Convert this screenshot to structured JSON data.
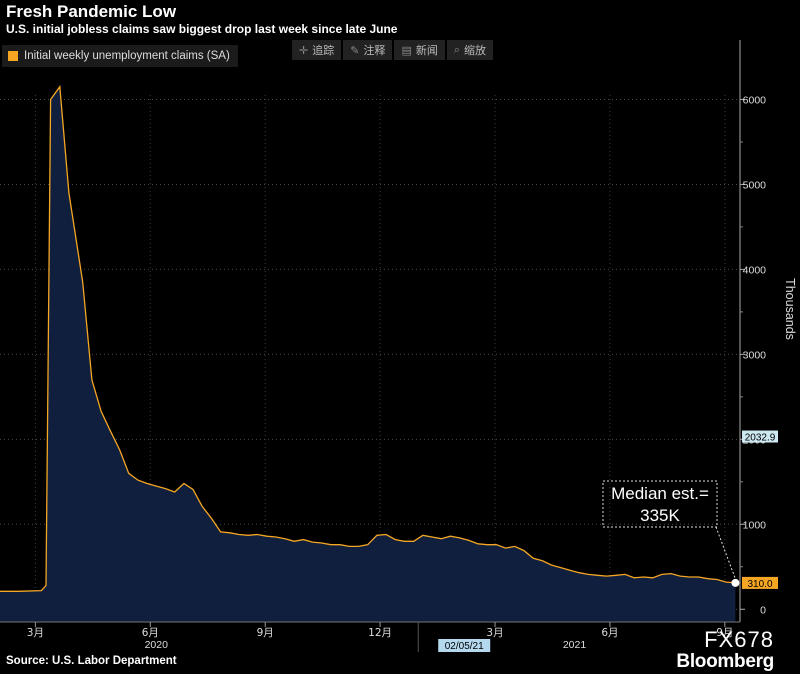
{
  "header": {
    "title": "Fresh Pandemic Low",
    "subtitle": "U.S. initial jobless claims saw biggest drop last week since late June"
  },
  "legend": {
    "label": "Initial weekly unemployment claims (SA)",
    "color": "#f5a623"
  },
  "toolbar": [
    {
      "icon": "crosshair-icon",
      "glyph": "✛",
      "label": "追踪"
    },
    {
      "icon": "pencil-icon",
      "glyph": "✎",
      "label": "注释"
    },
    {
      "icon": "news-icon",
      "glyph": "▤",
      "label": "新闻"
    },
    {
      "icon": "zoom-icon",
      "glyph": "⌕",
      "label": "缩放"
    }
  ],
  "footer": {
    "source": "Source: U.S. Labor Department",
    "ticker": "FX678",
    "brand": "Bloomberg"
  },
  "chart_data": {
    "type": "area",
    "title": "Fresh Pandemic Low",
    "ylabel": "Thousands",
    "ylim": [
      -150,
      6700
    ],
    "yticks": [
      0,
      1000,
      2000,
      3000,
      4000,
      5000,
      6000
    ],
    "xlim": [
      2020.09,
      2021.7
    ],
    "xticks": [
      {
        "x": 2020.167,
        "label": "3月"
      },
      {
        "x": 2020.417,
        "label": "6月"
      },
      {
        "x": 2020.667,
        "label": "9月"
      },
      {
        "x": 2020.917,
        "label": "12月"
      },
      {
        "x": 2021.167,
        "label": "3月"
      },
      {
        "x": 2021.417,
        "label": "6月"
      },
      {
        "x": 2021.667,
        "label": "9月"
      }
    ],
    "year_labels": [
      {
        "x": 2020.43,
        "label": "2020"
      },
      {
        "x": 2021.34,
        "label": "2021"
      }
    ],
    "date_marker": {
      "x": 2021.1,
      "label": "02/05/21"
    },
    "value_tags": [
      {
        "value": 2032.9,
        "label": "2032.9",
        "bg": "#cde9f2",
        "fg": "#000"
      },
      {
        "value": 310,
        "label": "310.0",
        "bg": "#f5a623",
        "fg": "#000"
      }
    ],
    "annotation": {
      "lines": [
        "Median est.=",
        "335K"
      ],
      "target_value": 310
    },
    "series": [
      {
        "name": "Initial weekly unemployment claims (SA)",
        "color": "#f5a623",
        "fill": "#0f1f3d",
        "points": [
          [
            2020.09,
            211
          ],
          [
            2020.13,
            211
          ],
          [
            2020.18,
            220
          ],
          [
            2020.19,
            280
          ],
          [
            2020.2,
            6000
          ],
          [
            2020.22,
            6150
          ],
          [
            2020.24,
            4900
          ],
          [
            2020.27,
            3850
          ],
          [
            2020.29,
            2700
          ],
          [
            2020.31,
            2330
          ],
          [
            2020.33,
            2100
          ],
          [
            2020.35,
            1880
          ],
          [
            2020.37,
            1600
          ],
          [
            2020.39,
            1520
          ],
          [
            2020.41,
            1480
          ],
          [
            2020.43,
            1450
          ],
          [
            2020.45,
            1420
          ],
          [
            2020.47,
            1380
          ],
          [
            2020.49,
            1480
          ],
          [
            2020.51,
            1410
          ],
          [
            2020.53,
            1210
          ],
          [
            2020.55,
            1070
          ],
          [
            2020.57,
            910
          ],
          [
            2020.59,
            900
          ],
          [
            2020.61,
            880
          ],
          [
            2020.63,
            870
          ],
          [
            2020.65,
            880
          ],
          [
            2020.67,
            860
          ],
          [
            2020.69,
            850
          ],
          [
            2020.71,
            830
          ],
          [
            2020.73,
            800
          ],
          [
            2020.75,
            820
          ],
          [
            2020.77,
            790
          ],
          [
            2020.79,
            780
          ],
          [
            2020.81,
            760
          ],
          [
            2020.83,
            760
          ],
          [
            2020.85,
            740
          ],
          [
            2020.87,
            740
          ],
          [
            2020.89,
            760
          ],
          [
            2020.91,
            870
          ],
          [
            2020.93,
            880
          ],
          [
            2020.95,
            820
          ],
          [
            2020.97,
            800
          ],
          [
            2020.99,
            800
          ],
          [
            2021.01,
            870
          ],
          [
            2021.03,
            850
          ],
          [
            2021.05,
            830
          ],
          [
            2021.07,
            860
          ],
          [
            2021.09,
            840
          ],
          [
            2021.11,
            810
          ],
          [
            2021.13,
            770
          ],
          [
            2021.15,
            760
          ],
          [
            2021.17,
            760
          ],
          [
            2021.19,
            720
          ],
          [
            2021.21,
            740
          ],
          [
            2021.23,
            690
          ],
          [
            2021.25,
            600
          ],
          [
            2021.27,
            570
          ],
          [
            2021.29,
            520
          ],
          [
            2021.31,
            490
          ],
          [
            2021.33,
            460
          ],
          [
            2021.35,
            430
          ],
          [
            2021.37,
            410
          ],
          [
            2021.39,
            400
          ],
          [
            2021.41,
            390
          ],
          [
            2021.43,
            400
          ],
          [
            2021.45,
            410
          ],
          [
            2021.47,
            370
          ],
          [
            2021.49,
            380
          ],
          [
            2021.51,
            370
          ],
          [
            2021.53,
            410
          ],
          [
            2021.55,
            420
          ],
          [
            2021.57,
            390
          ],
          [
            2021.59,
            380
          ],
          [
            2021.61,
            380
          ],
          [
            2021.63,
            360
          ],
          [
            2021.65,
            350
          ],
          [
            2021.67,
            320
          ],
          [
            2021.69,
            310
          ]
        ]
      }
    ]
  }
}
